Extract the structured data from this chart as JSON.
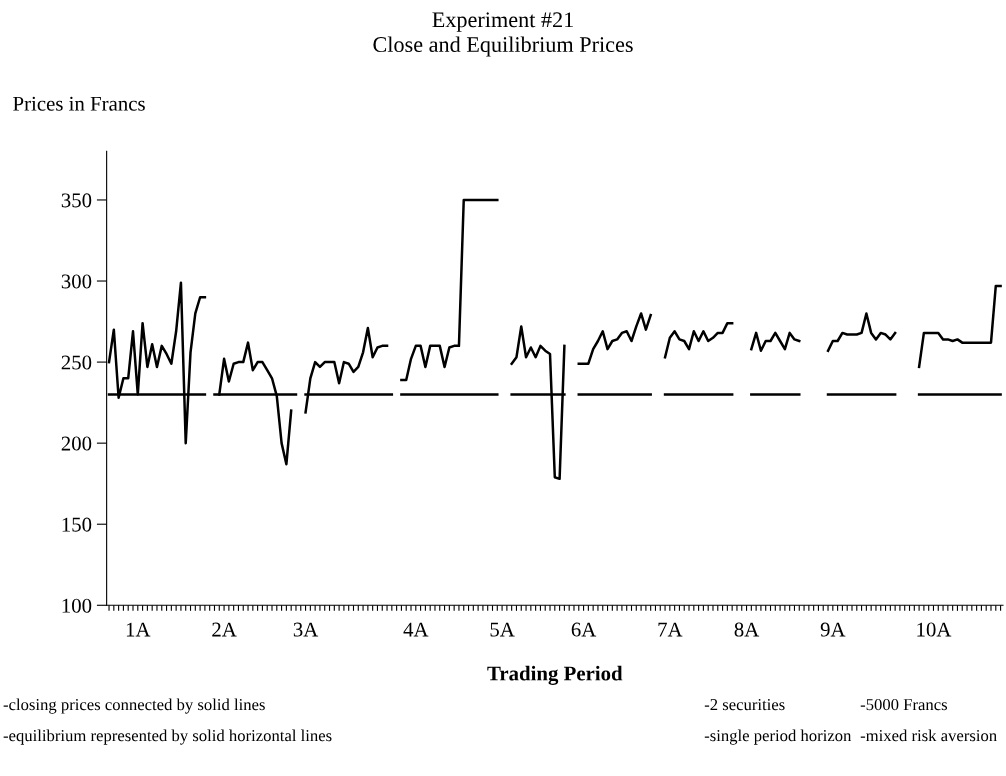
{
  "chart_data": {
    "type": "line",
    "title": "Experiment #21\nClose and Equilibrium Prices",
    "xlabel": "Trading Period",
    "ylabel": "Prices in Francs",
    "categories": [
      null,
      null,
      null,
      null,
      null,
      null,
      "1A",
      null,
      null,
      null,
      null,
      null,
      null,
      null,
      null,
      null,
      null,
      null,
      null,
      null,
      null,
      null,
      null,
      null,
      "2A",
      null,
      null,
      null,
      null,
      null,
      null,
      null,
      null,
      null,
      null,
      null,
      null,
      null,
      null,
      null,
      null,
      "3A",
      null,
      null,
      null,
      null,
      null,
      null,
      null,
      null,
      null,
      null,
      null,
      null,
      null,
      null,
      null,
      null,
      null,
      null,
      null,
      null,
      null,
      null,
      "4A",
      null,
      null,
      null,
      null,
      null,
      null,
      null,
      null,
      null,
      null,
      null,
      null,
      null,
      null,
      null,
      null,
      null,
      "5A",
      null,
      null,
      null,
      null,
      null,
      null,
      null,
      null,
      null,
      null,
      null,
      null,
      null,
      null,
      null,
      null,
      "6A",
      null,
      null,
      null,
      null,
      null,
      null,
      null,
      null,
      null,
      null,
      null,
      null,
      null,
      null,
      null,
      null,
      null,
      "7A",
      null,
      null,
      null,
      null,
      null,
      null,
      null,
      null,
      null,
      null,
      null,
      null,
      null,
      null,
      null,
      "8A",
      null,
      null,
      null,
      null,
      null,
      null,
      null,
      null,
      null,
      null,
      null,
      null,
      null,
      null,
      null,
      null,
      null,
      "9A",
      null,
      null,
      null,
      null,
      null,
      null,
      null,
      null,
      null,
      null,
      null,
      null,
      null,
      null,
      null,
      null,
      null,
      null,
      null,
      null,
      "10A",
      null,
      null,
      null,
      null,
      null,
      null,
      null,
      null,
      null,
      null,
      null,
      null,
      null,
      null
    ],
    "ylim": [
      100,
      380
    ],
    "yticks": [
      100,
      150,
      200,
      250,
      300,
      350
    ],
    "grid": false,
    "marker": "none",
    "line_style": "solid",
    "series": [
      {
        "color": "#000000",
        "values": [
          250,
          270,
          228,
          240,
          240,
          269,
          230,
          274,
          247,
          261,
          247,
          260,
          255,
          249,
          269,
          299,
          200,
          256,
          280,
          290,
          290,
          null,
          null,
          230,
          252,
          238,
          249,
          250,
          250,
          262,
          245,
          250,
          250,
          245,
          240,
          229,
          200,
          187,
          220,
          null,
          null,
          219,
          240,
          250,
          247,
          250,
          250,
          250,
          237,
          250,
          249,
          244,
          247,
          256,
          271,
          253,
          259,
          260,
          260,
          null,
          null,
          239,
          239,
          252,
          260,
          260,
          247,
          260,
          260,
          260,
          247,
          259,
          260,
          260,
          350,
          350,
          350,
          350,
          350,
          350,
          350,
          350,
          null,
          null,
          249,
          253,
          272,
          253,
          259,
          253,
          260,
          257,
          255,
          179,
          178,
          260,
          null,
          null,
          249,
          249,
          249,
          258,
          263,
          269,
          258,
          263,
          264,
          268,
          269,
          263,
          272,
          280,
          270,
          279,
          null,
          null,
          253,
          265,
          269,
          264,
          263,
          258,
          269,
          263,
          269,
          263,
          265,
          268,
          268,
          274,
          274,
          null,
          null,
          null,
          258,
          268,
          257,
          263,
          263,
          268,
          263,
          258,
          268,
          264,
          263,
          null,
          null,
          null,
          null,
          null,
          257,
          263,
          263,
          268,
          267,
          267,
          267,
          268,
          280,
          268,
          264,
          268,
          267,
          264,
          268,
          null,
          null,
          null,
          null,
          247,
          268,
          268,
          268,
          268,
          264,
          264,
          263,
          264,
          262,
          262,
          262,
          262,
          262,
          262,
          262,
          297,
          297
        ]
      },
      {
        "color": "#000000",
        "values": [
          230,
          230,
          230,
          230,
          230,
          230,
          230,
          230,
          230,
          230,
          230,
          230,
          230,
          230,
          230,
          230,
          230,
          230,
          230,
          230,
          230,
          null,
          230,
          230,
          230,
          230,
          230,
          230,
          230,
          230,
          230,
          230,
          230,
          230,
          230,
          230,
          230,
          230,
          230,
          230,
          null,
          230,
          230,
          230,
          230,
          230,
          230,
          230,
          230,
          230,
          230,
          230,
          230,
          230,
          230,
          230,
          230,
          230,
          230,
          230,
          null,
          230,
          230,
          230,
          230,
          230,
          230,
          230,
          230,
          230,
          230,
          230,
          230,
          230,
          230,
          230,
          230,
          230,
          230,
          230,
          230,
          230,
          null,
          null,
          230,
          230,
          230,
          230,
          230,
          230,
          230,
          230,
          230,
          230,
          230,
          230,
          null,
          null,
          230,
          230,
          230,
          230,
          230,
          230,
          230,
          230,
          230,
          230,
          230,
          230,
          230,
          230,
          230,
          230,
          null,
          null,
          230,
          230,
          230,
          230,
          230,
          230,
          230,
          230,
          230,
          230,
          230,
          230,
          230,
          230,
          230,
          null,
          null,
          null,
          230,
          230,
          230,
          230,
          230,
          230,
          230,
          230,
          230,
          230,
          230,
          null,
          null,
          null,
          null,
          null,
          230,
          230,
          230,
          230,
          230,
          230,
          230,
          230,
          230,
          230,
          230,
          230,
          230,
          230,
          230,
          null,
          null,
          null,
          null,
          230,
          230,
          230,
          230,
          230,
          230,
          230,
          230,
          230,
          230,
          230,
          230,
          230,
          230,
          230,
          230,
          230,
          230
        ]
      }
    ],
    "annotations": [
      "-closing prices connected by solid lines",
      "-equilibrium represented by solid horizontal lines",
      "-2 securities",
      "-5000 Francs",
      "-single period horizon",
      "-mixed risk aversion"
    ]
  }
}
